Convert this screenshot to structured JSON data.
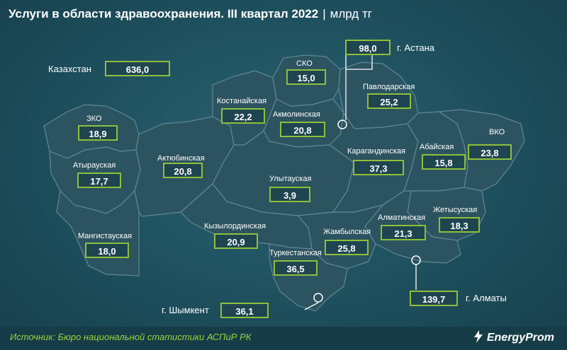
{
  "title": {
    "text": "Услуги в области здравоохранения. III квартал 2022",
    "separator": "|",
    "unit": "млрд тг"
  },
  "country": {
    "name": "Казахстан",
    "value": "636,0"
  },
  "cities": {
    "astana": {
      "name": "г. Астана",
      "value": "98,0"
    },
    "almaty": {
      "name": "г. Алматы",
      "value": "139,7"
    },
    "shymkent": {
      "name": "г. Шымкент",
      "value": "36,1"
    }
  },
  "regions": {
    "sko": {
      "name": "СКО",
      "value": "15,0"
    },
    "pavlodar": {
      "name": "Павлодарская",
      "value": "25,2"
    },
    "kostanay": {
      "name": "Костанайская",
      "value": "22,2"
    },
    "akmola": {
      "name": "Акмолинская",
      "value": "20,8"
    },
    "zko": {
      "name": "ЗКО",
      "value": "18,9"
    },
    "vko": {
      "name": "ВКО",
      "value": "23,8"
    },
    "abai": {
      "name": "Абайская",
      "value": "15,8"
    },
    "karaganda": {
      "name": "Карагандинская",
      "value": "37,3"
    },
    "aktobe": {
      "name": "Актюбинская",
      "value": "20,8"
    },
    "atyrau": {
      "name": "Атырауская",
      "value": "17,7"
    },
    "ulytau": {
      "name": "Улытауская",
      "value": "3,9"
    },
    "zhetysu": {
      "name": "Жетысуская",
      "value": "18,3"
    },
    "almaty": {
      "name": "Алматинская",
      "value": "21,3"
    },
    "kyzylorda": {
      "name": "Кызылординская",
      "value": "20,9"
    },
    "mangystau": {
      "name": "Мангистауская",
      "value": "18,0"
    },
    "zhambyl": {
      "name": "Жамбылская",
      "value": "25,8"
    },
    "turkestan": {
      "name": "Туркестанская",
      "value": "36,5"
    }
  },
  "footer": {
    "source": "Источник: Бюро национальной статистики АСПиР РК",
    "brand": "EnergyProm"
  },
  "colors": {
    "background": "#1d4d5b",
    "region_fill": "#2c5360",
    "value_border": "#8fbf3a",
    "source_text": "#9bd23c"
  }
}
